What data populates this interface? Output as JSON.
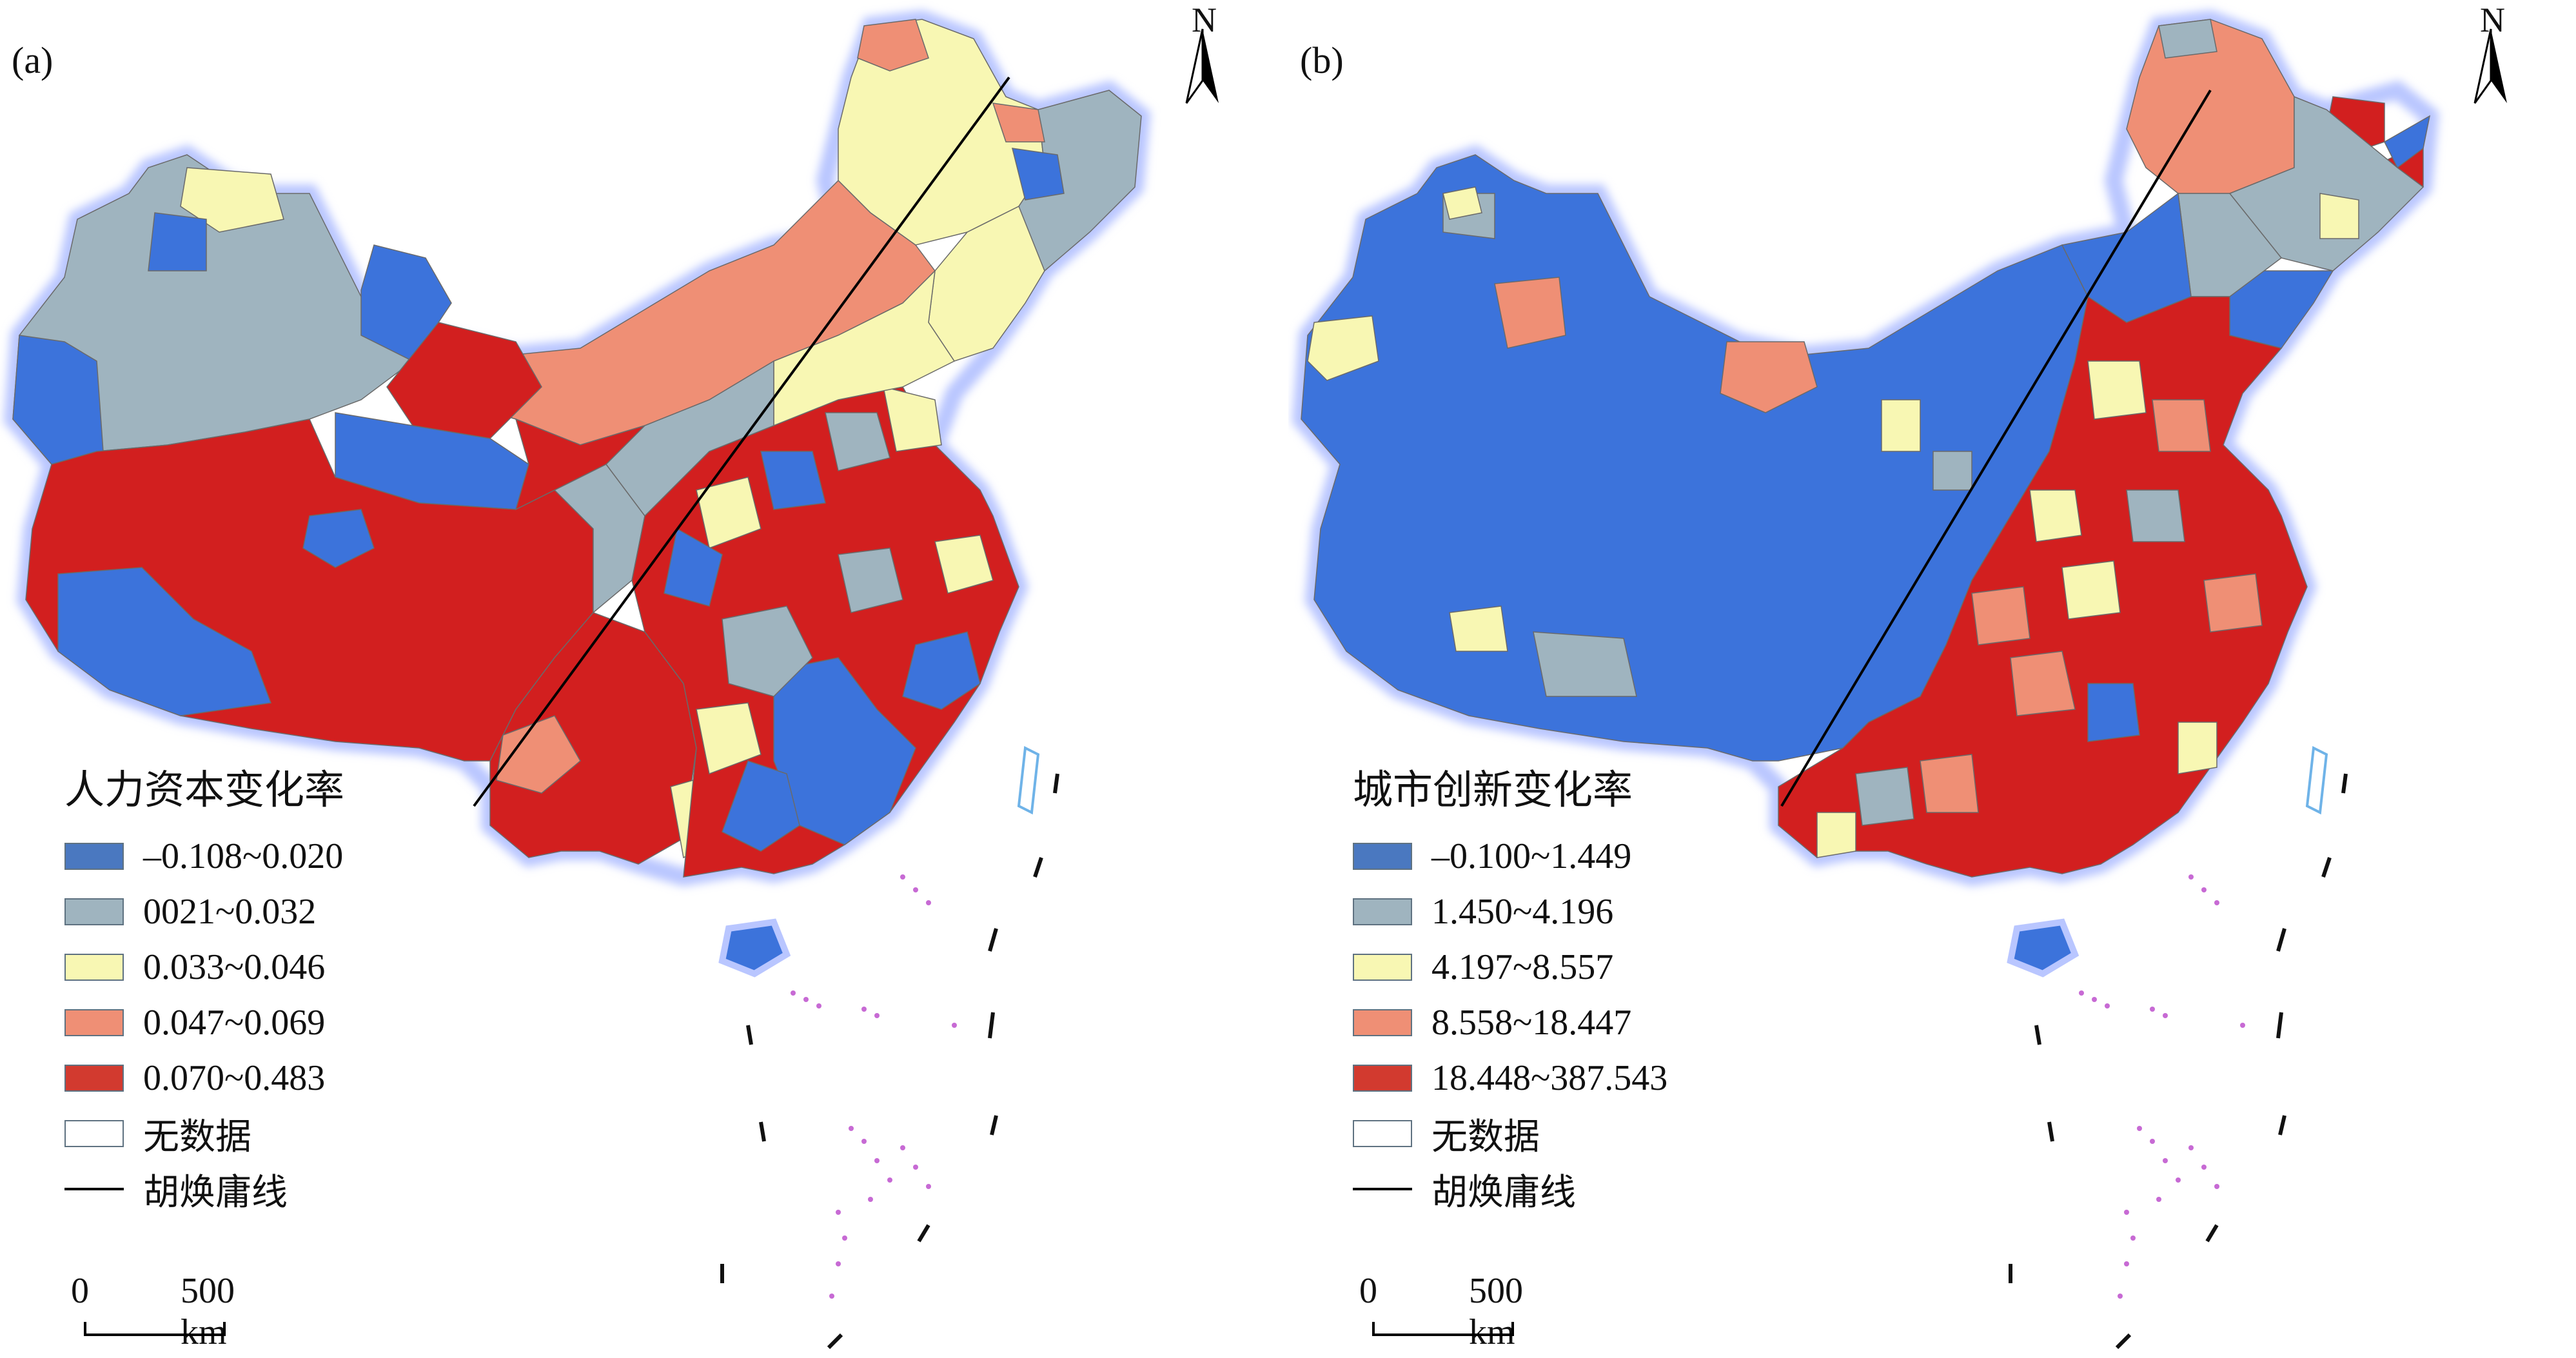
{
  "panels": [
    {
      "label": "(a)",
      "legend_title": "人力资本变化率",
      "north_label": "N",
      "legend_items": [
        {
          "label": "–0.108~0.020",
          "color": "#4a78c0"
        },
        {
          "label": "0021~0.032",
          "color": "#9fb4bf"
        },
        {
          "label": "0.033~0.046",
          "color": "#f8f7b3"
        },
        {
          "label": "0.047~0.069",
          "color": "#ef8f75"
        },
        {
          "label": "0.070~0.483",
          "color": "#d23a2f"
        }
      ],
      "no_data_label": "无数据",
      "line_label": "胡焕庸线",
      "scale": {
        "zero": "0",
        "distance": "500 km"
      }
    },
    {
      "label": "(b)",
      "legend_title": "城市创新变化率",
      "north_label": "N",
      "legend_items": [
        {
          "label": "–0.100~1.449",
          "color": "#4a78c0"
        },
        {
          "label": "1.450~4.196",
          "color": "#9fb4bf"
        },
        {
          "label": "4.197~8.557",
          "color": "#f8f7b3"
        },
        {
          "label": "8.558~18.447",
          "color": "#ef8f75"
        },
        {
          "label": "18.448~387.543",
          "color": "#d23a2f"
        }
      ],
      "no_data_label": "无数据",
      "line_label": "胡焕庸线",
      "scale": {
        "zero": "0",
        "distance": "500 km"
      }
    }
  ],
  "colors": {
    "blue": "#3c73db",
    "gray": "#9fb4bf",
    "yellow": "#f8f7b3",
    "orange": "#ef8f75",
    "red": "#d21f1f",
    "outline": "#ccd7ff",
    "island_pink": "#c76ad4"
  }
}
